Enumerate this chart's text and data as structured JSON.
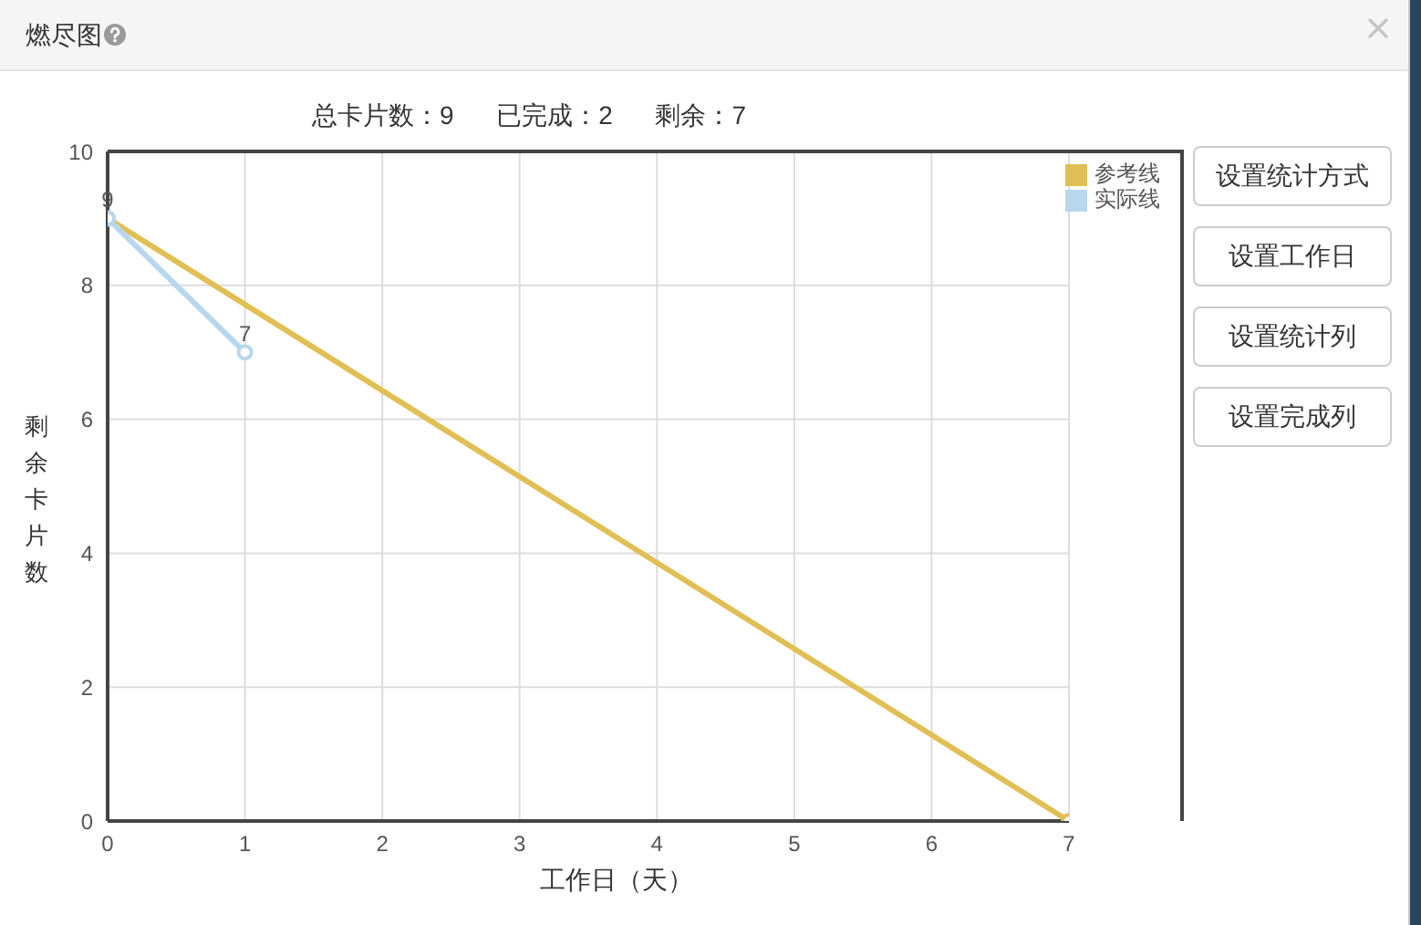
{
  "chart_data": {
    "type": "line",
    "title": "燃尽图",
    "subtitle": "总卡片数：9      已完成：2      剩余：7",
    "xlabel": "工作日（天）",
    "ylabel": "剩余卡片数",
    "xlim": [
      0,
      7
    ],
    "xticks": [
      0,
      1,
      2,
      3,
      4,
      5,
      6,
      7
    ],
    "ylim": [
      0,
      10
    ],
    "yticks": [
      0,
      2,
      4,
      6,
      8,
      10
    ],
    "series": [
      {
        "name": "参考线",
        "color": "#e0bf55",
        "x": [
          0,
          7
        ],
        "values": [
          9,
          0
        ]
      },
      {
        "name": "实际线",
        "color": "#b8d7ef",
        "x": [
          0,
          1
        ],
        "values": [
          9,
          7
        ],
        "value_labels": [
          "9",
          "7"
        ]
      }
    ],
    "grid": true,
    "legend": "top right",
    "marker": "circle",
    "line_style": "solid",
    "annotations": [
      "设置统计方式",
      "设置工作日",
      "设置统计列",
      "设置完成列"
    ]
  }
}
